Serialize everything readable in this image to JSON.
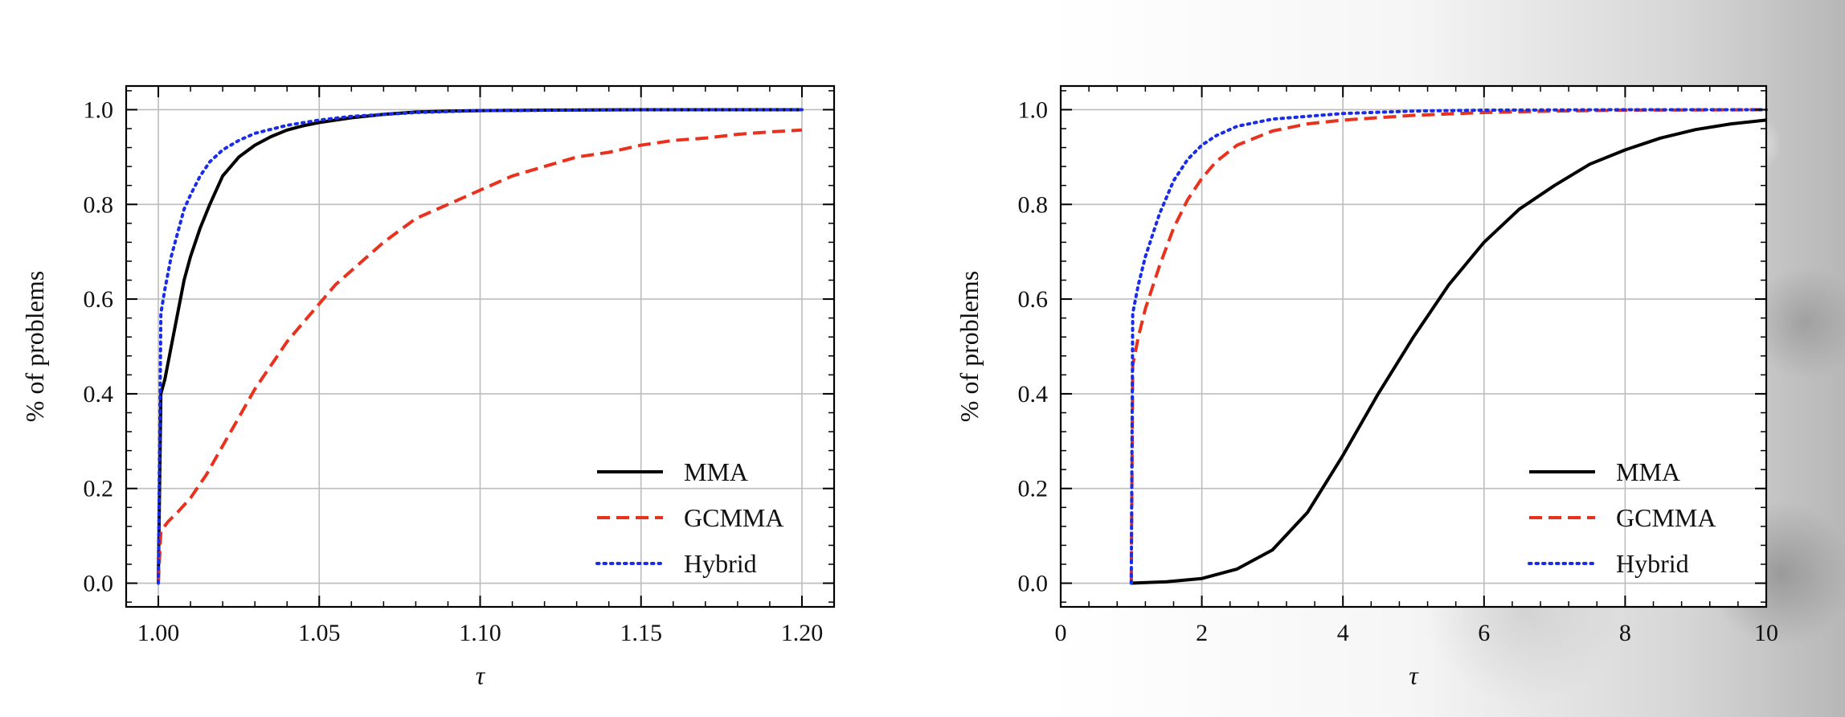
{
  "chart_data": [
    {
      "type": "line",
      "xlabel": "τ",
      "ylabel": "% of problems",
      "xlim": [
        0.99,
        1.21
      ],
      "ylim": [
        -0.05,
        1.05
      ],
      "xticks": [
        1.0,
        1.05,
        1.1,
        1.15,
        1.2
      ],
      "xtick_labels": [
        "1.00",
        "1.05",
        "1.10",
        "1.15",
        "1.20"
      ],
      "yticks": [
        0.0,
        0.2,
        0.4,
        0.6,
        0.8,
        1.0
      ],
      "ytick_labels": [
        "0.0",
        "0.2",
        "0.4",
        "0.6",
        "0.8",
        "1.0"
      ],
      "grid": true,
      "legend_position": "bottom-right",
      "series": [
        {
          "name": "MMA",
          "color": "#000000",
          "style": "solid",
          "x": [
            1.0,
            1.0008,
            1.002,
            1.004,
            1.006,
            1.008,
            1.01,
            1.013,
            1.016,
            1.02,
            1.025,
            1.03,
            1.035,
            1.04,
            1.045,
            1.05,
            1.06,
            1.07,
            1.08,
            1.09,
            1.1,
            1.12,
            1.15,
            1.2
          ],
          "y": [
            0.0,
            0.4,
            0.43,
            0.5,
            0.57,
            0.64,
            0.69,
            0.75,
            0.8,
            0.86,
            0.9,
            0.925,
            0.943,
            0.957,
            0.966,
            0.973,
            0.983,
            0.99,
            0.995,
            0.997,
            0.998,
            0.999,
            1.0,
            1.0
          ]
        },
        {
          "name": "GCMMA",
          "color": "#e8321e",
          "style": "dashed",
          "x": [
            1.0,
            1.0008,
            1.003,
            1.006,
            1.01,
            1.015,
            1.02,
            1.025,
            1.03,
            1.035,
            1.04,
            1.045,
            1.05,
            1.055,
            1.06,
            1.07,
            1.08,
            1.09,
            1.1,
            1.11,
            1.12,
            1.13,
            1.14,
            1.15,
            1.16,
            1.17,
            1.18,
            1.19,
            1.2
          ],
          "y": [
            0.0,
            0.11,
            0.13,
            0.15,
            0.18,
            0.23,
            0.29,
            0.35,
            0.41,
            0.46,
            0.51,
            0.55,
            0.59,
            0.63,
            0.66,
            0.72,
            0.77,
            0.8,
            0.83,
            0.86,
            0.88,
            0.9,
            0.91,
            0.925,
            0.935,
            0.94,
            0.948,
            0.953,
            0.957
          ]
        },
        {
          "name": "Hybrid",
          "color": "#1a2de6",
          "style": "dotted",
          "x": [
            1.0,
            1.0008,
            1.002,
            1.004,
            1.006,
            1.008,
            1.01,
            1.013,
            1.016,
            1.02,
            1.025,
            1.03,
            1.04,
            1.05,
            1.06,
            1.08,
            1.1,
            1.15,
            1.2
          ],
          "y": [
            0.0,
            0.57,
            0.62,
            0.69,
            0.74,
            0.79,
            0.82,
            0.86,
            0.89,
            0.915,
            0.935,
            0.95,
            0.967,
            0.978,
            0.986,
            0.994,
            0.998,
            1.0,
            1.0
          ]
        }
      ]
    },
    {
      "type": "line",
      "xlabel": "τ",
      "ylabel": "% of problems",
      "xlim": [
        0,
        10
      ],
      "ylim": [
        -0.05,
        1.05
      ],
      "xticks": [
        0,
        2,
        4,
        6,
        8,
        10
      ],
      "xtick_labels": [
        "0",
        "2",
        "4",
        "6",
        "8",
        "10"
      ],
      "yticks": [
        0.0,
        0.2,
        0.4,
        0.6,
        0.8,
        1.0
      ],
      "ytick_labels": [
        "0.0",
        "0.2",
        "0.4",
        "0.6",
        "0.8",
        "1.0"
      ],
      "grid": true,
      "legend_position": "bottom-right",
      "series": [
        {
          "name": "MMA",
          "color": "#000000",
          "style": "solid",
          "x": [
            1.0,
            1.5,
            2.0,
            2.5,
            3.0,
            3.5,
            4.0,
            4.5,
            5.0,
            5.5,
            6.0,
            6.5,
            7.0,
            7.5,
            8.0,
            8.5,
            9.0,
            9.5,
            10.0
          ],
          "y": [
            0.0,
            0.003,
            0.01,
            0.03,
            0.07,
            0.15,
            0.27,
            0.4,
            0.52,
            0.63,
            0.72,
            0.79,
            0.84,
            0.885,
            0.915,
            0.94,
            0.958,
            0.97,
            0.978
          ]
        },
        {
          "name": "GCMMA",
          "color": "#e8321e",
          "style": "dashed",
          "x": [
            1.0,
            1.02,
            1.1,
            1.2,
            1.4,
            1.6,
            1.8,
            2.0,
            2.2,
            2.5,
            3.0,
            3.5,
            4.0,
            5.0,
            6.0,
            7.0,
            8.0,
            10.0
          ],
          "y": [
            0.0,
            0.46,
            0.52,
            0.58,
            0.67,
            0.75,
            0.81,
            0.855,
            0.89,
            0.925,
            0.955,
            0.97,
            0.978,
            0.988,
            0.994,
            0.997,
            0.999,
            1.0
          ]
        },
        {
          "name": "Hybrid",
          "color": "#1a2de6",
          "style": "dotted",
          "x": [
            1.0,
            1.02,
            1.1,
            1.2,
            1.4,
            1.6,
            1.8,
            2.0,
            2.2,
            2.5,
            3.0,
            4.0,
            5.0,
            6.0,
            8.0,
            10.0
          ],
          "y": [
            0.0,
            0.57,
            0.63,
            0.69,
            0.78,
            0.85,
            0.895,
            0.925,
            0.945,
            0.965,
            0.98,
            0.992,
            0.997,
            0.999,
            1.0,
            1.0
          ]
        }
      ]
    }
  ]
}
